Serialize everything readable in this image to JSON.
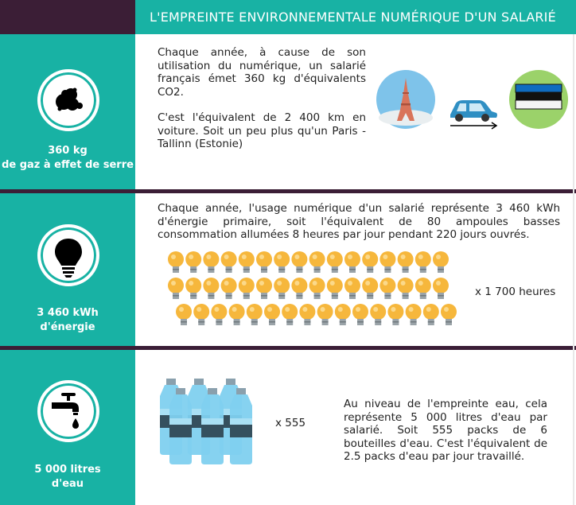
{
  "header": {
    "title": "L'EMPREINTE ENVIRONNEMENTALE NUMÉRIQUE D'UN SALARIÉ"
  },
  "sections": [
    {
      "icon": "smoke-cloud-icon",
      "caption_line1": "360 kg",
      "caption_line2": "de gaz à effet de serre",
      "para1": "Chaque année, à cause de son utilisation du numérique, un salarié français émet 360 kg d'équivalents CO2.",
      "para2": "C'est l'équivalent de 2 400 km en voiture. Soit un peu plus qu'un Paris - Tallinn (Estonie)"
    },
    {
      "icon": "light-bulb-icon",
      "caption_line1": "3 460 kWh",
      "caption_line2": "d'énergie",
      "para": "Chaque année, l'usage numérique d'un salarié représente 3 460 kWh d'énergie primaire, soit l'équivalent de 80 ampoules basses consommation allumées 8 heures par jour pendant 220 jours ouvrés.",
      "multiplier": "x 1 700 heures"
    },
    {
      "icon": "water-tap-icon",
      "caption_line1": "5 000 litres",
      "caption_line2": "d'eau",
      "para": "Au niveau de l'empreinte eau, cela représente 5 000 litres d'eau par salarié. Soit 555 packs de 6 bouteilles d'eau. C'est l'équivalent de 2.5 packs d'eau par jour travaillé.",
      "multiplier": "x 555"
    }
  ],
  "colors": {
    "teal": "#18b2a4",
    "dark": "#3b1e36",
    "bulb": "#f6b73c"
  }
}
